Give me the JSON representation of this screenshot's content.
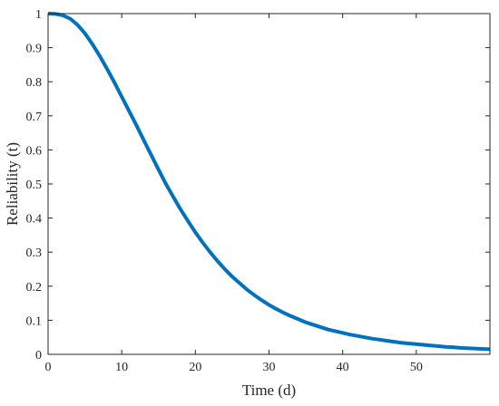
{
  "chart_data": {
    "type": "line",
    "title": "",
    "xlabel": "Time (d)",
    "ylabel": "Reliability (t)",
    "xlim": [
      0,
      60
    ],
    "ylim": [
      0,
      1
    ],
    "xticks": [
      0,
      10,
      20,
      30,
      40,
      50
    ],
    "yticks": [
      0,
      0.1,
      0.2,
      0.3,
      0.4,
      0.5,
      0.6,
      0.7,
      0.8,
      0.9,
      1
    ],
    "grid": false,
    "legend": "none",
    "series": [
      {
        "color": "#0072BD",
        "x": [
          0,
          1,
          2,
          3,
          4,
          5,
          6,
          7,
          8,
          9,
          10,
          11,
          12,
          13,
          14,
          15,
          16,
          17,
          18,
          19,
          20,
          21,
          22,
          23,
          24,
          25,
          26,
          27,
          28,
          29,
          30,
          31,
          32,
          33,
          34,
          35,
          36,
          37,
          38,
          39,
          40,
          41,
          42,
          43,
          44,
          45,
          46,
          47,
          48,
          49,
          50,
          51,
          52,
          53,
          54,
          55,
          56,
          57,
          58,
          59,
          60
        ],
        "y": [
          1.0,
          0.999,
          0.995,
          0.985,
          0.967,
          0.942,
          0.911,
          0.876,
          0.838,
          0.798,
          0.756,
          0.714,
          0.672,
          0.628,
          0.585,
          0.542,
          0.5,
          0.462,
          0.425,
          0.391,
          0.358,
          0.328,
          0.3,
          0.274,
          0.25,
          0.228,
          0.209,
          0.19,
          0.174,
          0.159,
          0.145,
          0.133,
          0.122,
          0.112,
          0.103,
          0.094,
          0.087,
          0.08,
          0.073,
          0.068,
          0.063,
          0.058,
          0.054,
          0.05,
          0.046,
          0.043,
          0.04,
          0.037,
          0.034,
          0.032,
          0.03,
          0.028,
          0.026,
          0.024,
          0.022,
          0.021,
          0.019,
          0.018,
          0.017,
          0.016,
          0.015
        ]
      }
    ]
  }
}
